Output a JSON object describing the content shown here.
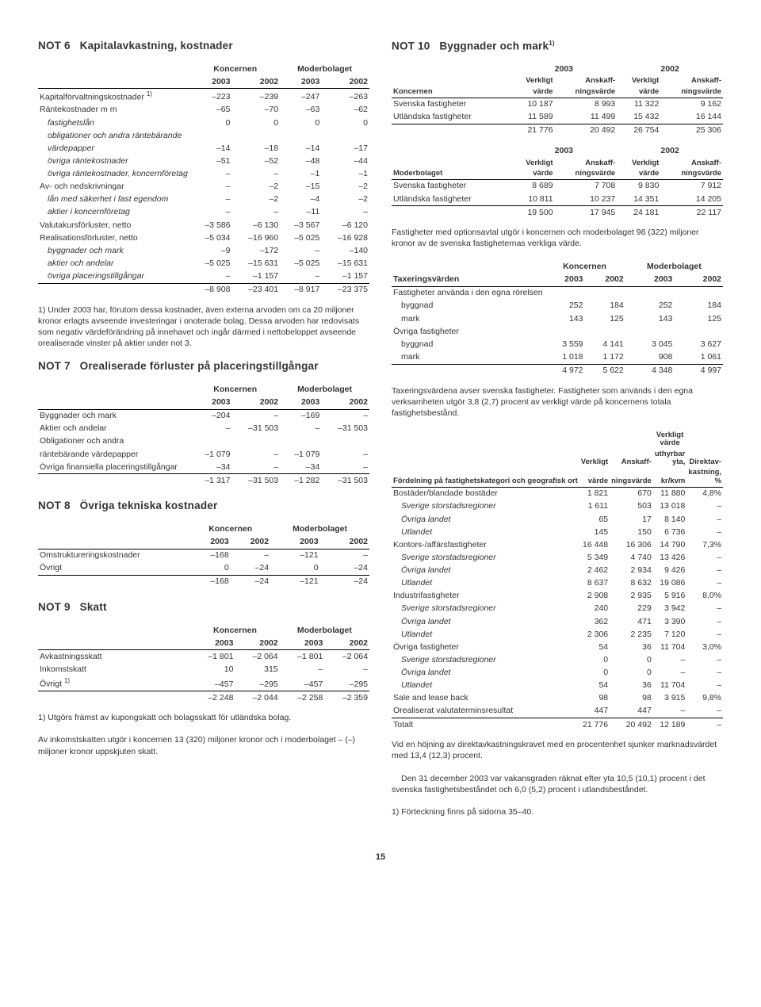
{
  "page_number": "15",
  "left": {
    "not6": {
      "title_tag": "NOT 6",
      "title": "Kapitalavkastning, kostnader",
      "group_headers": [
        "Koncernen",
        "Moderbolaget"
      ],
      "year_headers": [
        "2003",
        "2002",
        "2003",
        "2002"
      ],
      "rows": [
        {
          "label": "Kapitalförvaltningskostnader ",
          "sup": "1)",
          "v": [
            "–223",
            "–239",
            "–247",
            "–263"
          ]
        },
        {
          "label": "Räntekostnader m m",
          "v": [
            "–65",
            "–70",
            "–63",
            "–62"
          ]
        },
        {
          "label": "fastighetslån",
          "indent": true,
          "italic": true,
          "v": [
            "0",
            "0",
            "0",
            "0"
          ]
        },
        {
          "label": "obligationer och andra räntebärande",
          "indent": true,
          "italic": true,
          "v": [
            "",
            "",
            "",
            ""
          ]
        },
        {
          "label": "värdepapper",
          "indent": true,
          "italic": true,
          "v": [
            "–14",
            "–18",
            "–14",
            "–17"
          ]
        },
        {
          "label": "övriga räntekostnader",
          "indent": true,
          "italic": true,
          "v": [
            "–51",
            "–52",
            "–48",
            "–44"
          ]
        },
        {
          "label": "övriga räntekostnader, koncernföretag",
          "indent": true,
          "italic": true,
          "v": [
            "–",
            "–",
            "–1",
            "–1"
          ]
        },
        {
          "label": "Av- och nedskrivningar",
          "v": [
            "–",
            "–2",
            "–15",
            "–2"
          ]
        },
        {
          "label": "lån med säkerhet i fast egendom",
          "indent": true,
          "italic": true,
          "v": [
            "–",
            "–2",
            "–4",
            "–2"
          ]
        },
        {
          "label": "aktier i koncernföretag",
          "indent": true,
          "italic": true,
          "v": [
            "–",
            "–",
            "–11",
            "–"
          ]
        },
        {
          "label": "Valutakursförluster, netto",
          "v": [
            "–3 586",
            "–6 130",
            "–3 567",
            "–6 120"
          ]
        },
        {
          "label": "Realisationsförluster, netto",
          "v": [
            "–5 034",
            "–16 960",
            "–5 025",
            "–16 928"
          ]
        },
        {
          "label": "byggnader och mark",
          "indent": true,
          "italic": true,
          "v": [
            "–9",
            "–172",
            "–",
            "–140"
          ]
        },
        {
          "label": "aktier och andelar",
          "indent": true,
          "italic": true,
          "v": [
            "–5 025",
            "–15 631",
            "–5 025",
            "–15 631"
          ]
        },
        {
          "label": "övriga placeringstillgångar",
          "indent": true,
          "italic": true,
          "v": [
            "–",
            "–1 157",
            "–",
            "–1 157"
          ]
        }
      ],
      "total": {
        "v": [
          "–8 908",
          "–23 401",
          "–8 917",
          "–23 375"
        ]
      },
      "footnote": "1) Under 2003 har, förutom dessa kostnader, även externa arvoden om ca 20 miljoner kronor erlagts avseende investeringar i onoterade bolag. Dessa arvoden har redovisats som negativ värdeförändring på innehavet och ingår därmed i nettobeloppet avseende orealiserade vinster på aktier under not 3."
    },
    "not7": {
      "title_tag": "NOT 7",
      "title": "Orealiserade förluster på placeringstillgångar",
      "group_headers": [
        "Koncernen",
        "Moderbolaget"
      ],
      "year_headers": [
        "2003",
        "2002",
        "2003",
        "2002"
      ],
      "rows": [
        {
          "label": "Byggnader och mark",
          "v": [
            "–204",
            "–",
            "–169",
            "–"
          ]
        },
        {
          "label": "Aktier och andelar",
          "v": [
            "–",
            "–31 503",
            "–",
            "–31 503"
          ]
        },
        {
          "label": "Obligationer och andra",
          "v": [
            "",
            "",
            "",
            ""
          ]
        },
        {
          "label": "räntebärande värdepapper",
          "v": [
            "–1 079",
            "–",
            "–1 079",
            "–"
          ]
        },
        {
          "label": "Övriga finansiella placeringstillgångar",
          "v": [
            "–34",
            "–",
            "–34",
            "–"
          ]
        }
      ],
      "total": {
        "v": [
          "–1 317",
          "–31 503",
          "–1 282",
          "–31 503"
        ]
      }
    },
    "not8": {
      "title_tag": "NOT 8",
      "title": "Övriga tekniska kostnader",
      "group_headers": [
        "Koncernen",
        "Moderbolaget"
      ],
      "year_headers": [
        "2003",
        "2002",
        "2003",
        "2002"
      ],
      "rows": [
        {
          "label": "Omstruktureringskostnader",
          "v": [
            "–168",
            "–",
            "–121",
            "–"
          ]
        },
        {
          "label": "Övrigt",
          "v": [
            "0",
            "–24",
            "0",
            "–24"
          ]
        }
      ],
      "total": {
        "v": [
          "–168",
          "–24",
          "–121",
          "–24"
        ]
      }
    },
    "not9": {
      "title_tag": "NOT 9",
      "title": "Skatt",
      "group_headers": [
        "Koncernen",
        "Moderbolaget"
      ],
      "year_headers": [
        "2003",
        "2002",
        "2003",
        "2002"
      ],
      "rows": [
        {
          "label": "Avkastningsskatt",
          "v": [
            "–1 801",
            "–2 064",
            "–1 801",
            "–2 064"
          ]
        },
        {
          "label": "Inkomstskatt",
          "v": [
            "10",
            "315",
            "–",
            "–"
          ]
        },
        {
          "label": "Övrigt ",
          "sup": "1)",
          "v": [
            "–457",
            "–295",
            "–457",
            "–295"
          ]
        }
      ],
      "total": {
        "v": [
          "–2 248",
          "–2 044",
          "–2 258",
          "–2 359"
        ]
      },
      "foot1": "1) Utgörs främst av kupongskatt och bolagsskatt för utländska bolag.",
      "foot2": "Av inkomstskatten utgör i koncernen 13 (320) miljoner kronor och i moderbolaget – (–) miljoner kronor uppskjuten skatt."
    }
  },
  "right": {
    "not10": {
      "title_tag": "NOT 10",
      "title": "Byggnader och mark",
      "title_sup": "1)",
      "koncernen": {
        "entity": "Koncernen",
        "yr1": "2003",
        "yr2": "2002",
        "sub1": "Verkligt",
        "sub2": "Anskaff-",
        "sub3": "Verkligt",
        "sub4": "Anskaff-",
        "sub1b": "värde",
        "sub2b": "ningsvärde",
        "sub3b": "värde",
        "sub4b": "ningsvärde",
        "rows": [
          {
            "label": "Svenska fastigheter",
            "v": [
              "10 187",
              "8 993",
              "11 322",
              "9 162"
            ]
          },
          {
            "label": "Utländska fastigheter",
            "v": [
              "11 589",
              "11 499",
              "15 432",
              "16 144"
            ]
          }
        ],
        "total": {
          "v": [
            "21 776",
            "20 492",
            "26 754",
            "25 306"
          ]
        }
      },
      "moder": {
        "entity": "Moderbolaget",
        "rows": [
          {
            "label": "Svenska fastigheter",
            "v": [
              "8 689",
              "7 708",
              "9 830",
              "7 912"
            ]
          },
          {
            "label": "Utländska fastigheter",
            "v": [
              "10 811",
              "10 237",
              "14 351",
              "14 205"
            ]
          }
        ],
        "total": {
          "v": [
            "19 500",
            "17 945",
            "24 181",
            "22 117"
          ]
        }
      },
      "para1": "Fastigheter med optionsavtal utgör i koncernen och moderbolaget 98 (322) miljoner kronor av de svenska fastigheternas verkliga värde.",
      "tax": {
        "label": "Taxeringsvärden",
        "group_headers": [
          "Koncernen",
          "Moderbolaget"
        ],
        "year_headers": [
          "2003",
          "2002",
          "2003",
          "2002"
        ],
        "section1": "Fastigheter använda i den egna rörelsen",
        "rows1": [
          {
            "label": "byggnad",
            "indent": true,
            "v": [
              "252",
              "184",
              "252",
              "184"
            ]
          },
          {
            "label": "mark",
            "indent": true,
            "v": [
              "143",
              "125",
              "143",
              "125"
            ]
          }
        ],
        "section2": "Övriga fastigheter",
        "rows2": [
          {
            "label": "byggnad",
            "indent": true,
            "v": [
              "3 559",
              "4 141",
              "3 045",
              "3 627"
            ]
          },
          {
            "label": "mark",
            "indent": true,
            "v": [
              "1 018",
              "1 172",
              "908",
              "1 061"
            ]
          }
        ],
        "total": {
          "v": [
            "4 972",
            "5 622",
            "4 348",
            "4 997"
          ]
        }
      },
      "para2": "Taxeringsvärdena avser svenska fastigheter. Fastigheter som används i den egna verksamheten utgör 3,8 (2,7) procent av verkligt värde på koncernens totala fastighetsbestånd.",
      "dist": {
        "head_label": "Fördelning på fastighetskategori och geografisk ort",
        "col_group": "Verkligt värde",
        "c1a": "Verkligt",
        "c1b": "värde",
        "c2a": "Anskaff-",
        "c2b": "ningsvärde",
        "c3a": "uthyrbar yta,",
        "c3b": "kr/kvm",
        "c4a": "Direktav-",
        "c4b": "kastning, %",
        "rows": [
          {
            "label": "Bostäder/blandade bostäder",
            "v": [
              "1 821",
              "670",
              "11 880",
              "4,8%"
            ]
          },
          {
            "label": "Sverige storstadsregioner",
            "indent": true,
            "italic": true,
            "v": [
              "1 611",
              "503",
              "13 018",
              "–"
            ]
          },
          {
            "label": "Övriga landet",
            "indent": true,
            "italic": true,
            "v": [
              "65",
              "17",
              "8 140",
              "–"
            ]
          },
          {
            "label": "Utlandet",
            "indent": true,
            "italic": true,
            "v": [
              "145",
              "150",
              "6 736",
              "–"
            ]
          },
          {
            "label": "Kontors-/affärsfastigheter",
            "v": [
              "16 448",
              "16 306",
              "14 790",
              "7,3%"
            ]
          },
          {
            "label": "Sverige storstadsregioner",
            "indent": true,
            "italic": true,
            "v": [
              "5 349",
              "4 740",
              "13 426",
              "–"
            ]
          },
          {
            "label": "Övriga landet",
            "indent": true,
            "italic": true,
            "v": [
              "2 462",
              "2 934",
              "9 426",
              "–"
            ]
          },
          {
            "label": "Utlandet",
            "indent": true,
            "italic": true,
            "v": [
              "8 637",
              "8 632",
              "19 086",
              "–"
            ]
          },
          {
            "label": "Industrifastigheter",
            "v": [
              "2 908",
              "2 935",
              "5 916",
              "8,0%"
            ]
          },
          {
            "label": "Sverige storstadsregioner",
            "indent": true,
            "italic": true,
            "v": [
              "240",
              "229",
              "3 942",
              "–"
            ]
          },
          {
            "label": "Övriga landet",
            "indent": true,
            "italic": true,
            "v": [
              "362",
              "471",
              "3 390",
              "–"
            ]
          },
          {
            "label": "Utlandet",
            "indent": true,
            "italic": true,
            "v": [
              "2 306",
              "2 235",
              "7 120",
              "–"
            ]
          },
          {
            "label": "Övriga fastigheter",
            "v": [
              "54",
              "36",
              "11 704",
              "3,0%"
            ]
          },
          {
            "label": "Sverige storstadsregioner",
            "indent": true,
            "italic": true,
            "v": [
              "0",
              "0",
              "–",
              "–"
            ]
          },
          {
            "label": "Övriga landet",
            "indent": true,
            "italic": true,
            "v": [
              "0",
              "0",
              "–",
              "–"
            ]
          },
          {
            "label": "Utlandet",
            "indent": true,
            "italic": true,
            "v": [
              "54",
              "36",
              "11 704",
              "–"
            ]
          },
          {
            "label": "Sale and lease back",
            "v": [
              "98",
              "98",
              "3 915",
              "9,8%"
            ]
          },
          {
            "label": "Orealiserat valutaterminsresultat",
            "v": [
              "447",
              "447",
              "–",
              "–"
            ]
          }
        ],
        "total": {
          "label": "Totalt",
          "v": [
            "21 776",
            "20 492",
            "12 189",
            "–"
          ]
        }
      },
      "para3": "Vid en höjning av direktavkastningskravet med en procentenhet sjunker marknadsvärdet med 13,4 (12,3) procent.",
      "para4": "Den 31 december 2003 var vakansgraden räknat efter yta 10,5 (10,1) procent i det svenska fastighetsbeståndet och 6,0 (5,2) procent i utlandsbeståndet.",
      "foot": "1) Förteckning finns på sidorna 35–40."
    }
  }
}
